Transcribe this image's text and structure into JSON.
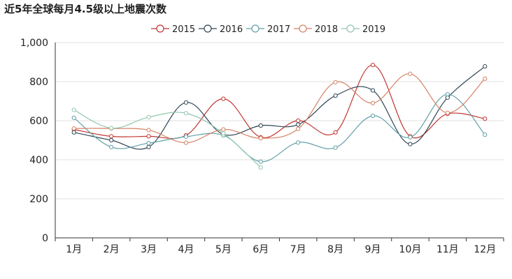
{
  "chart_data": {
    "type": "line",
    "title": "近5年全球每月4.5级以上地震次数",
    "categories": [
      "1月",
      "2月",
      "3月",
      "4月",
      "5月",
      "6月",
      "7月",
      "8月",
      "9月",
      "10月",
      "11月",
      "12月"
    ],
    "ylim": [
      0,
      1000
    ],
    "yticks": [
      0,
      200,
      400,
      600,
      800,
      1000
    ],
    "ytick_labels": [
      "0",
      "200",
      "400",
      "600",
      "800",
      "1,000"
    ],
    "grid": true,
    "legend_position": "top-center",
    "series": [
      {
        "name": "2015",
        "color": "#c23531",
        "values": [
          555,
          520,
          520,
          525,
          712,
          515,
          600,
          540,
          885,
          520,
          635,
          610
        ]
      },
      {
        "name": "2016",
        "color": "#2f4554",
        "values": [
          540,
          500,
          465,
          693,
          530,
          575,
          580,
          728,
          755,
          480,
          718,
          878
        ]
      },
      {
        "name": "2017",
        "color": "#61a0a8",
        "values": [
          615,
          465,
          485,
          518,
          525,
          390,
          488,
          462,
          625,
          515,
          735,
          528
        ]
      },
      {
        "name": "2018",
        "color": "#d48265",
        "values": [
          560,
          560,
          552,
          487,
          555,
          510,
          558,
          797,
          690,
          840,
          640,
          815
        ]
      },
      {
        "name": "2019",
        "color": "#91c7ae",
        "values": [
          655,
          562,
          618,
          638,
          535,
          360,
          null,
          null,
          null,
          null,
          null,
          null
        ]
      }
    ]
  }
}
